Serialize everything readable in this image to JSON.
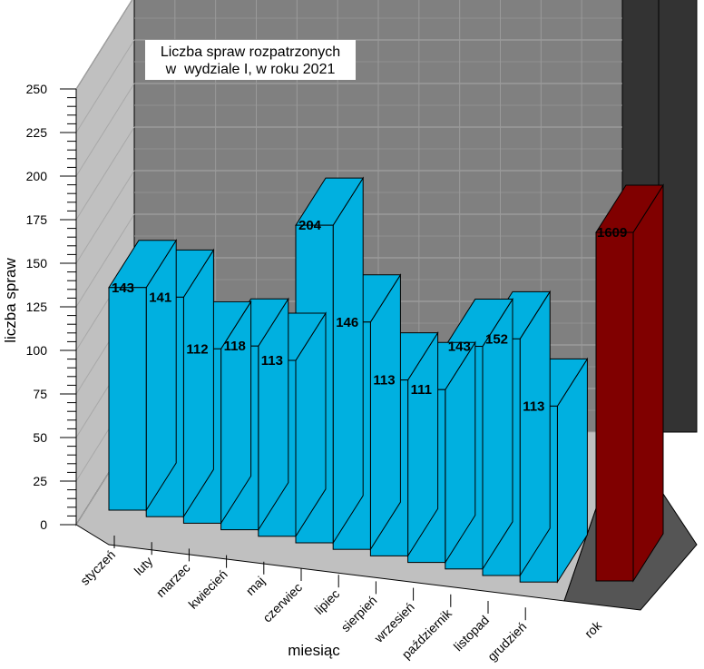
{
  "chart_data": {
    "type": "bar",
    "title": [
      "Liczba spraw rozpatrzonych",
      "w  wydziale I, w roku 2021"
    ],
    "xlabel": "miesiąc",
    "ylabel": "liczba spraw",
    "ylim": [
      0,
      250
    ],
    "yticks": [
      0,
      25,
      50,
      75,
      100,
      125,
      150,
      175,
      200,
      225,
      250
    ],
    "categories": [
      "styczeń",
      "luty",
      "marzec",
      "kwiecień",
      "maj",
      "czerwiec",
      "lipiec",
      "sierpień",
      "wrzesień",
      "październik",
      "listopad",
      "grudzień"
    ],
    "values": [
      143,
      141,
      112,
      118,
      113,
      204,
      146,
      113,
      111,
      143,
      152,
      113
    ],
    "value_labels": [
      "143",
      "141",
      "112",
      "118",
      "113",
      "204",
      "146",
      "113",
      "111",
      "143",
      "152",
      "113"
    ],
    "total": {
      "label": "rok",
      "value": 1609,
      "value_label": "1609"
    },
    "colors": {
      "bar": "#00b0e0",
      "total_bar": "#800000",
      "back_wall": "#808080",
      "floor": "#c0c0c0",
      "total_back_wall": "#333333",
      "total_floor": "#555555"
    },
    "grid": true,
    "three_d": true
  }
}
